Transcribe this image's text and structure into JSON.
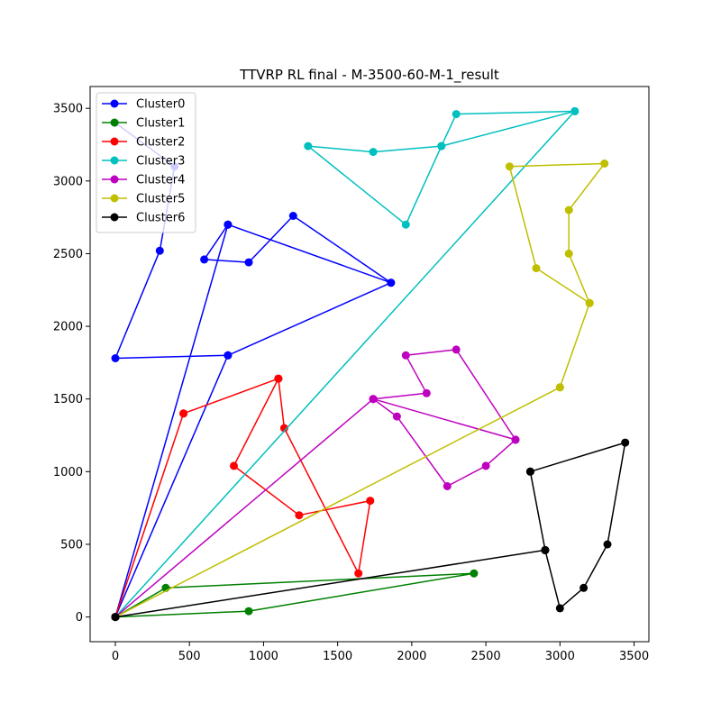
{
  "chart_data": {
    "type": "line",
    "title": "TTVRP RL final - M-3500-60-M-1_result",
    "xlabel": "",
    "ylabel": "",
    "xlim": [
      -170,
      3600
    ],
    "ylim": [
      -170,
      3650
    ],
    "xticks": [
      0,
      500,
      1000,
      1500,
      2000,
      2500,
      3000,
      3500
    ],
    "yticks": [
      0,
      500,
      1000,
      1500,
      2000,
      2500,
      3000,
      3500
    ],
    "legend_position": "top-left",
    "grid": false,
    "series": [
      {
        "name": "Cluster0",
        "color": "#0000ff",
        "x": [
          0,
          760,
          1860,
          1200,
          900,
          600,
          760,
          0,
          760,
          1860,
          760,
          0,
          300,
          400,
          0
        ],
        "y": [
          0,
          2700,
          2300,
          2760,
          2440,
          2460,
          2700,
          0,
          1800,
          2300,
          1800,
          1780,
          2520,
          3100,
          3400
        ]
      },
      {
        "name": "Cluster1",
        "color": "#008000",
        "x": [
          0,
          340,
          2420,
          900,
          0
        ],
        "y": [
          0,
          200,
          300,
          40,
          0
        ]
      },
      {
        "name": "Cluster2",
        "color": "#ff0000",
        "x": [
          0,
          460,
          1100,
          800,
          1240,
          1720,
          1640,
          1140,
          1100,
          460,
          0
        ],
        "y": [
          0,
          1400,
          1640,
          1040,
          700,
          800,
          300,
          1300,
          1640,
          1400,
          0
        ]
      },
      {
        "name": "Cluster3",
        "color": "#00bfbf",
        "x": [
          0,
          3100,
          2200,
          1960,
          1300,
          1740,
          2200,
          2300,
          3100,
          0
        ],
        "y": [
          0,
          3480,
          3240,
          2700,
          3240,
          3200,
          3240,
          3460,
          3480,
          0
        ]
      },
      {
        "name": "Cluster4",
        "color": "#bf00bf",
        "x": [
          0,
          1740,
          2700,
          1740,
          2100,
          1960,
          2300,
          2700,
          2500,
          2240,
          1900,
          1740,
          0
        ],
        "y": [
          0,
          1500,
          1220,
          1500,
          1540,
          1800,
          1840,
          1220,
          1040,
          900,
          1380,
          1500,
          0
        ]
      },
      {
        "name": "Cluster5",
        "color": "#bfbf00",
        "x": [
          0,
          3000,
          3200,
          2840,
          2660,
          3300,
          3060,
          3060,
          3200,
          3000,
          0
        ],
        "y": [
          0,
          1580,
          2160,
          2400,
          3100,
          3120,
          2800,
          2500,
          2160,
          1580,
          0
        ]
      },
      {
        "name": "Cluster6",
        "color": "#000000",
        "x": [
          0,
          2900,
          2800,
          3440,
          3320,
          3160,
          3000,
          2900,
          2800,
          2900,
          0
        ],
        "y": [
          0,
          460,
          1000,
          1200,
          500,
          200,
          60,
          460,
          1000,
          460,
          0
        ]
      }
    ]
  }
}
